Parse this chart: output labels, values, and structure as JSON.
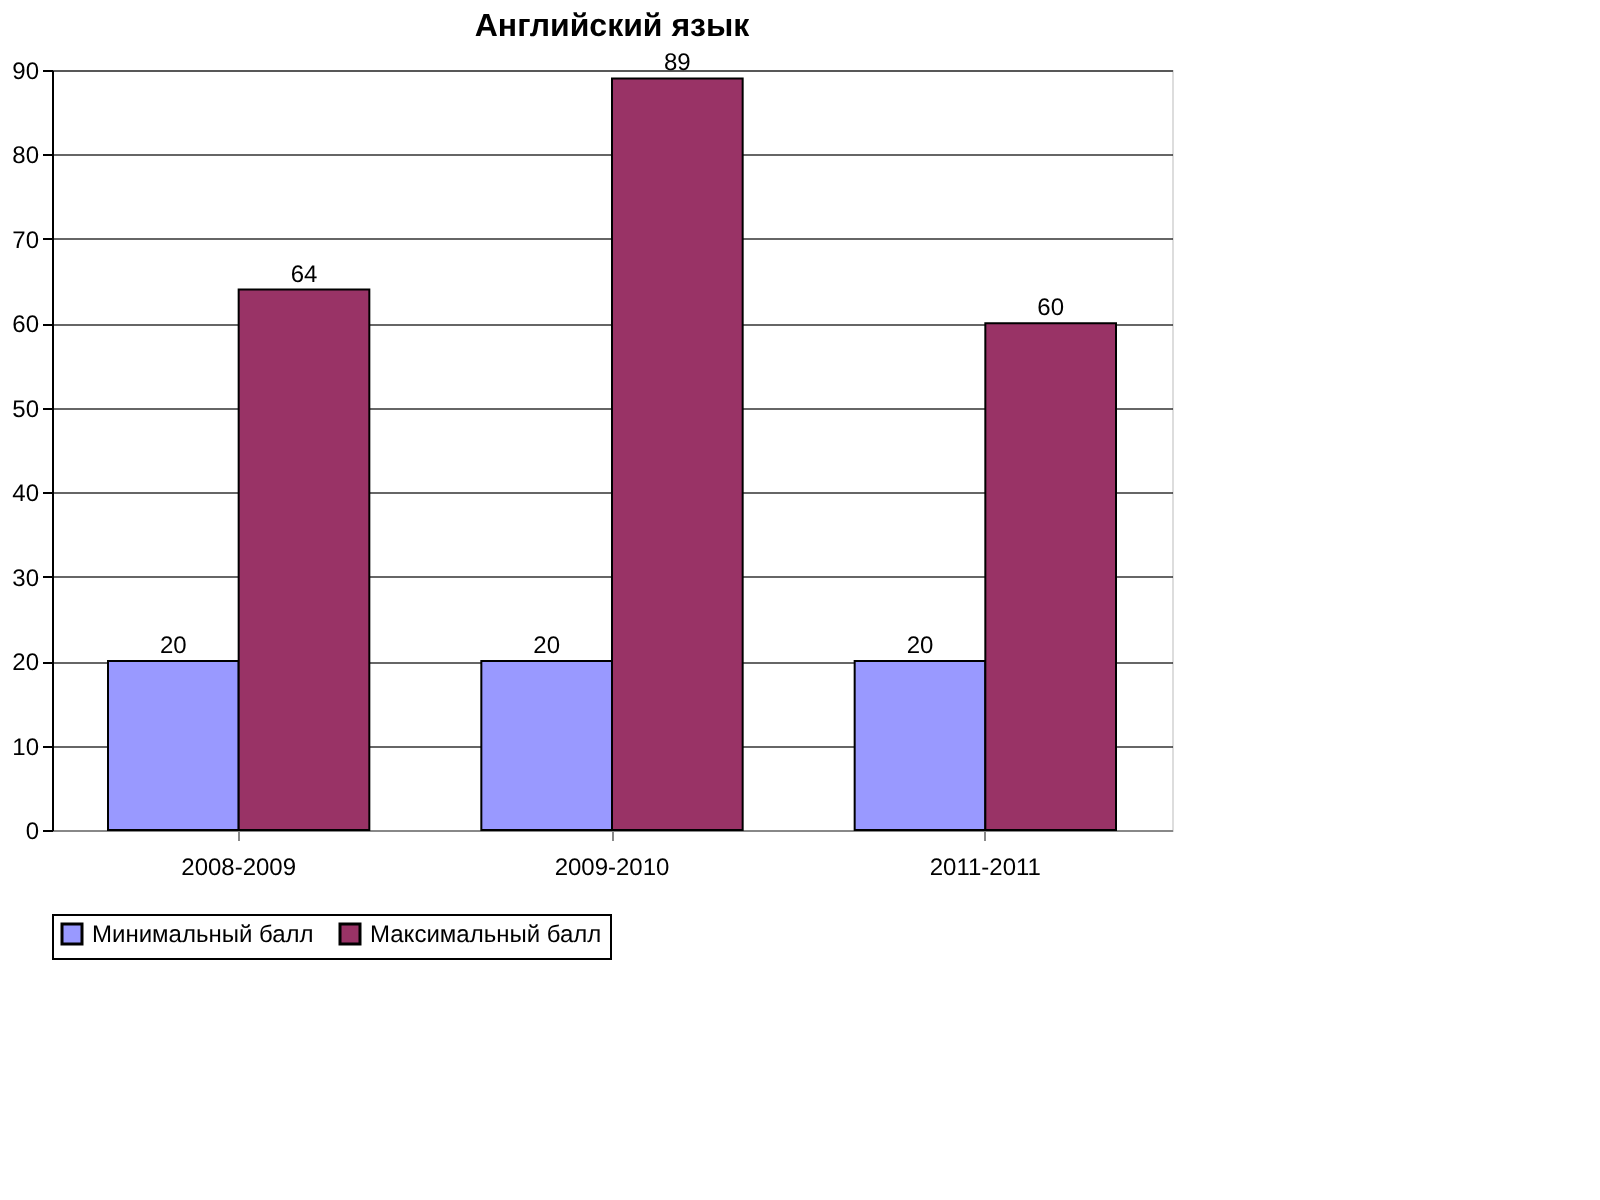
{
  "chart_data": {
    "type": "bar",
    "title": "Английский язык",
    "categories": [
      "2008-2009",
      "2009-2010",
      "2011-2011"
    ],
    "series": [
      {
        "name": "Минимальный балл",
        "color": "#9999ff",
        "values": [
          20,
          20,
          20
        ]
      },
      {
        "name": "Максимальный балл",
        "color": "#993366",
        "values": [
          64,
          89,
          60
        ]
      }
    ],
    "ylim": [
      0,
      90
    ],
    "yticks": [
      0,
      10,
      20,
      30,
      40,
      50,
      60,
      70,
      80,
      90
    ],
    "grid": "y",
    "legend": "bottom",
    "data_labels": true
  }
}
